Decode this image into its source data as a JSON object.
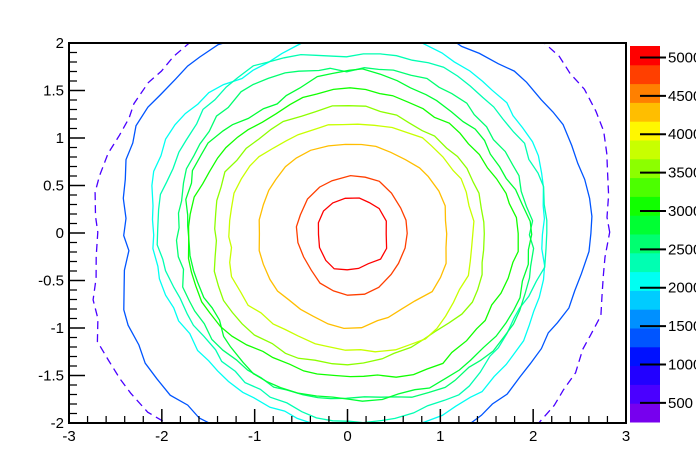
{
  "window": {
    "background": "#ffffff"
  },
  "chart_data": {
    "type": "contour",
    "title": "",
    "xlabel": "",
    "ylabel": "",
    "x_axis": {
      "range": [
        -3,
        3
      ],
      "major_ticks": [
        -3,
        -2,
        -1,
        0,
        1,
        2,
        3
      ],
      "labels": [
        "-3",
        "-2",
        "-1",
        "0",
        "1",
        "2",
        "3"
      ],
      "minor_step": 0.2
    },
    "y_axis": {
      "range": [
        -2,
        2
      ],
      "major_ticks": [
        2,
        1.5,
        1,
        0.5,
        0,
        -0.5,
        -1,
        -1.5,
        -2
      ],
      "labels": [
        "2",
        "1.5",
        "1",
        "0.5",
        "0",
        "-0.5",
        "-1",
        "-1.5",
        "-2"
      ],
      "minor_step": 0.1
    },
    "z_axis": {
      "range": [
        250,
        5150
      ],
      "ticks": [
        500,
        1000,
        1500,
        2000,
        2500,
        3000,
        3500,
        4000,
        4500,
        5000
      ],
      "labels": [
        "500",
        "1000",
        "1500",
        "2000",
        "2500",
        "3000",
        "3500",
        "4000",
        "4500",
        "5000"
      ],
      "n_bands": 20,
      "legend_position": "right"
    },
    "grid": false,
    "frame_color": "#000000",
    "label_color": "#000000",
    "palette": [
      "#7700EE",
      "#4A00FF",
      "#2200FF",
      "#0011FF",
      "#0055FF",
      "#0090FF",
      "#00CCFF",
      "#00FFF2",
      "#00FFB2",
      "#00FF70",
      "#00FF33",
      "#11FF00",
      "#4CFF00",
      "#8CFF00",
      "#C8FF00",
      "#FFF700",
      "#FFBE00",
      "#FF8000",
      "#FF3F00",
      "#FF0000"
    ],
    "peak": {
      "center_x": 0.05,
      "center_y": -0.02,
      "amplitude": 5150
    },
    "contours": [
      {
        "level": 495,
        "rx": 2.88,
        "ry": 2.74,
        "color": "#4A00FF"
      },
      {
        "level": 740,
        "rx": 2.74,
        "ry": 2.61,
        "color": "#2200FF"
      },
      {
        "level": 985,
        "rx": 2.61,
        "ry": 2.49,
        "color": "#0011FF"
      },
      {
        "level": 1230,
        "rx": 2.5,
        "ry": 2.38,
        "color": "#0055FF"
      },
      {
        "level": 1475,
        "rx": 2.38,
        "ry": 2.27,
        "color": "#0090FF"
      },
      {
        "level": 1720,
        "rx": 2.27,
        "ry": 2.16,
        "color": "#00CCFF"
      },
      {
        "level": 1965,
        "rx": 2.16,
        "ry": 2.05,
        "color": "#00FFF2"
      },
      {
        "level": 2210,
        "rx": 2.06,
        "ry": 1.93,
        "color": "#00FFB2"
      },
      {
        "level": 2455,
        "rx": 1.96,
        "ry": 1.8,
        "color": "#00FF70"
      },
      {
        "level": 2700,
        "rx": 1.85,
        "ry": 1.67,
        "color": "#00FF33"
      },
      {
        "level": 2945,
        "rx": 1.74,
        "ry": 1.56,
        "color": "#11FF00"
      },
      {
        "level": 3190,
        "rx": 1.62,
        "ry": 1.45,
        "color": "#4CFF00"
      },
      {
        "level": 3435,
        "rx": 1.51,
        "ry": 1.33,
        "color": "#8CFF00"
      },
      {
        "level": 3680,
        "rx": 1.38,
        "ry": 1.22,
        "color": "#C8FF00"
      },
      {
        "level": 3925,
        "rx": 1.22,
        "ry": 1.1,
        "color": "#FFF700"
      },
      {
        "level": 4170,
        "rx": 1.04,
        "ry": 0.96,
        "color": "#FFBE00"
      },
      {
        "level": 4415,
        "rx": 0.85,
        "ry": 0.82,
        "color": "#FF8000"
      },
      {
        "level": 4660,
        "rx": 0.62,
        "ry": 0.6,
        "color": "#FF3F00"
      },
      {
        "level": 4905,
        "rx": 0.38,
        "ry": 0.39,
        "color": "#FF0000"
      }
    ]
  }
}
